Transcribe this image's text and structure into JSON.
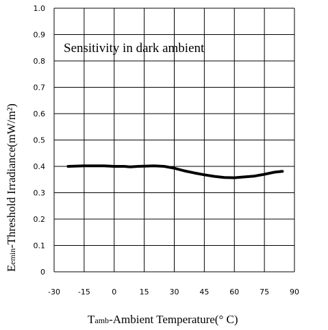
{
  "chart_data": {
    "type": "line",
    "annotation": "Sensitivity in dark ambient",
    "xlabel": {
      "sub": "amb",
      "main": "T",
      "rest": "-Ambient Temperature(° C)"
    },
    "ylabel": {
      "main": "E",
      "sub": "emin",
      "rest": "-Threshold Irradiance(mW/m²)"
    },
    "xlim": [
      -30,
      90
    ],
    "ylim": [
      0,
      1.0
    ],
    "x_ticks": [
      -30,
      -15,
      0,
      15,
      30,
      45,
      60,
      75,
      90
    ],
    "y_ticks": [
      0,
      0.1,
      0.2,
      0.3,
      0.4,
      0.5,
      0.6,
      0.7,
      0.8,
      0.9,
      1.0
    ],
    "x_tick_labels": [
      "-30",
      "-15",
      "0",
      "15",
      "30",
      "45",
      "60",
      "75",
      "90"
    ],
    "y_tick_labels": [
      "0",
      "0.1",
      "0.2",
      "0.3",
      "0.4",
      "0.5",
      "0.6",
      "0.7",
      "0.8",
      "0.9",
      "1.0"
    ],
    "grid": true,
    "series": [
      {
        "x": [
          -23,
          -15,
          -5,
          0,
          5,
          8,
          12,
          20,
          25,
          30,
          35,
          40,
          45,
          50,
          55,
          60,
          65,
          70,
          75,
          80,
          84
        ],
        "y": [
          0.4,
          0.402,
          0.402,
          0.4,
          0.4,
          0.398,
          0.4,
          0.402,
          0.4,
          0.393,
          0.383,
          0.375,
          0.368,
          0.362,
          0.358,
          0.357,
          0.36,
          0.363,
          0.37,
          0.378,
          0.381
        ]
      }
    ],
    "colors": {
      "line": "#000000",
      "grid": "#000000",
      "background": "#ffffff"
    }
  }
}
